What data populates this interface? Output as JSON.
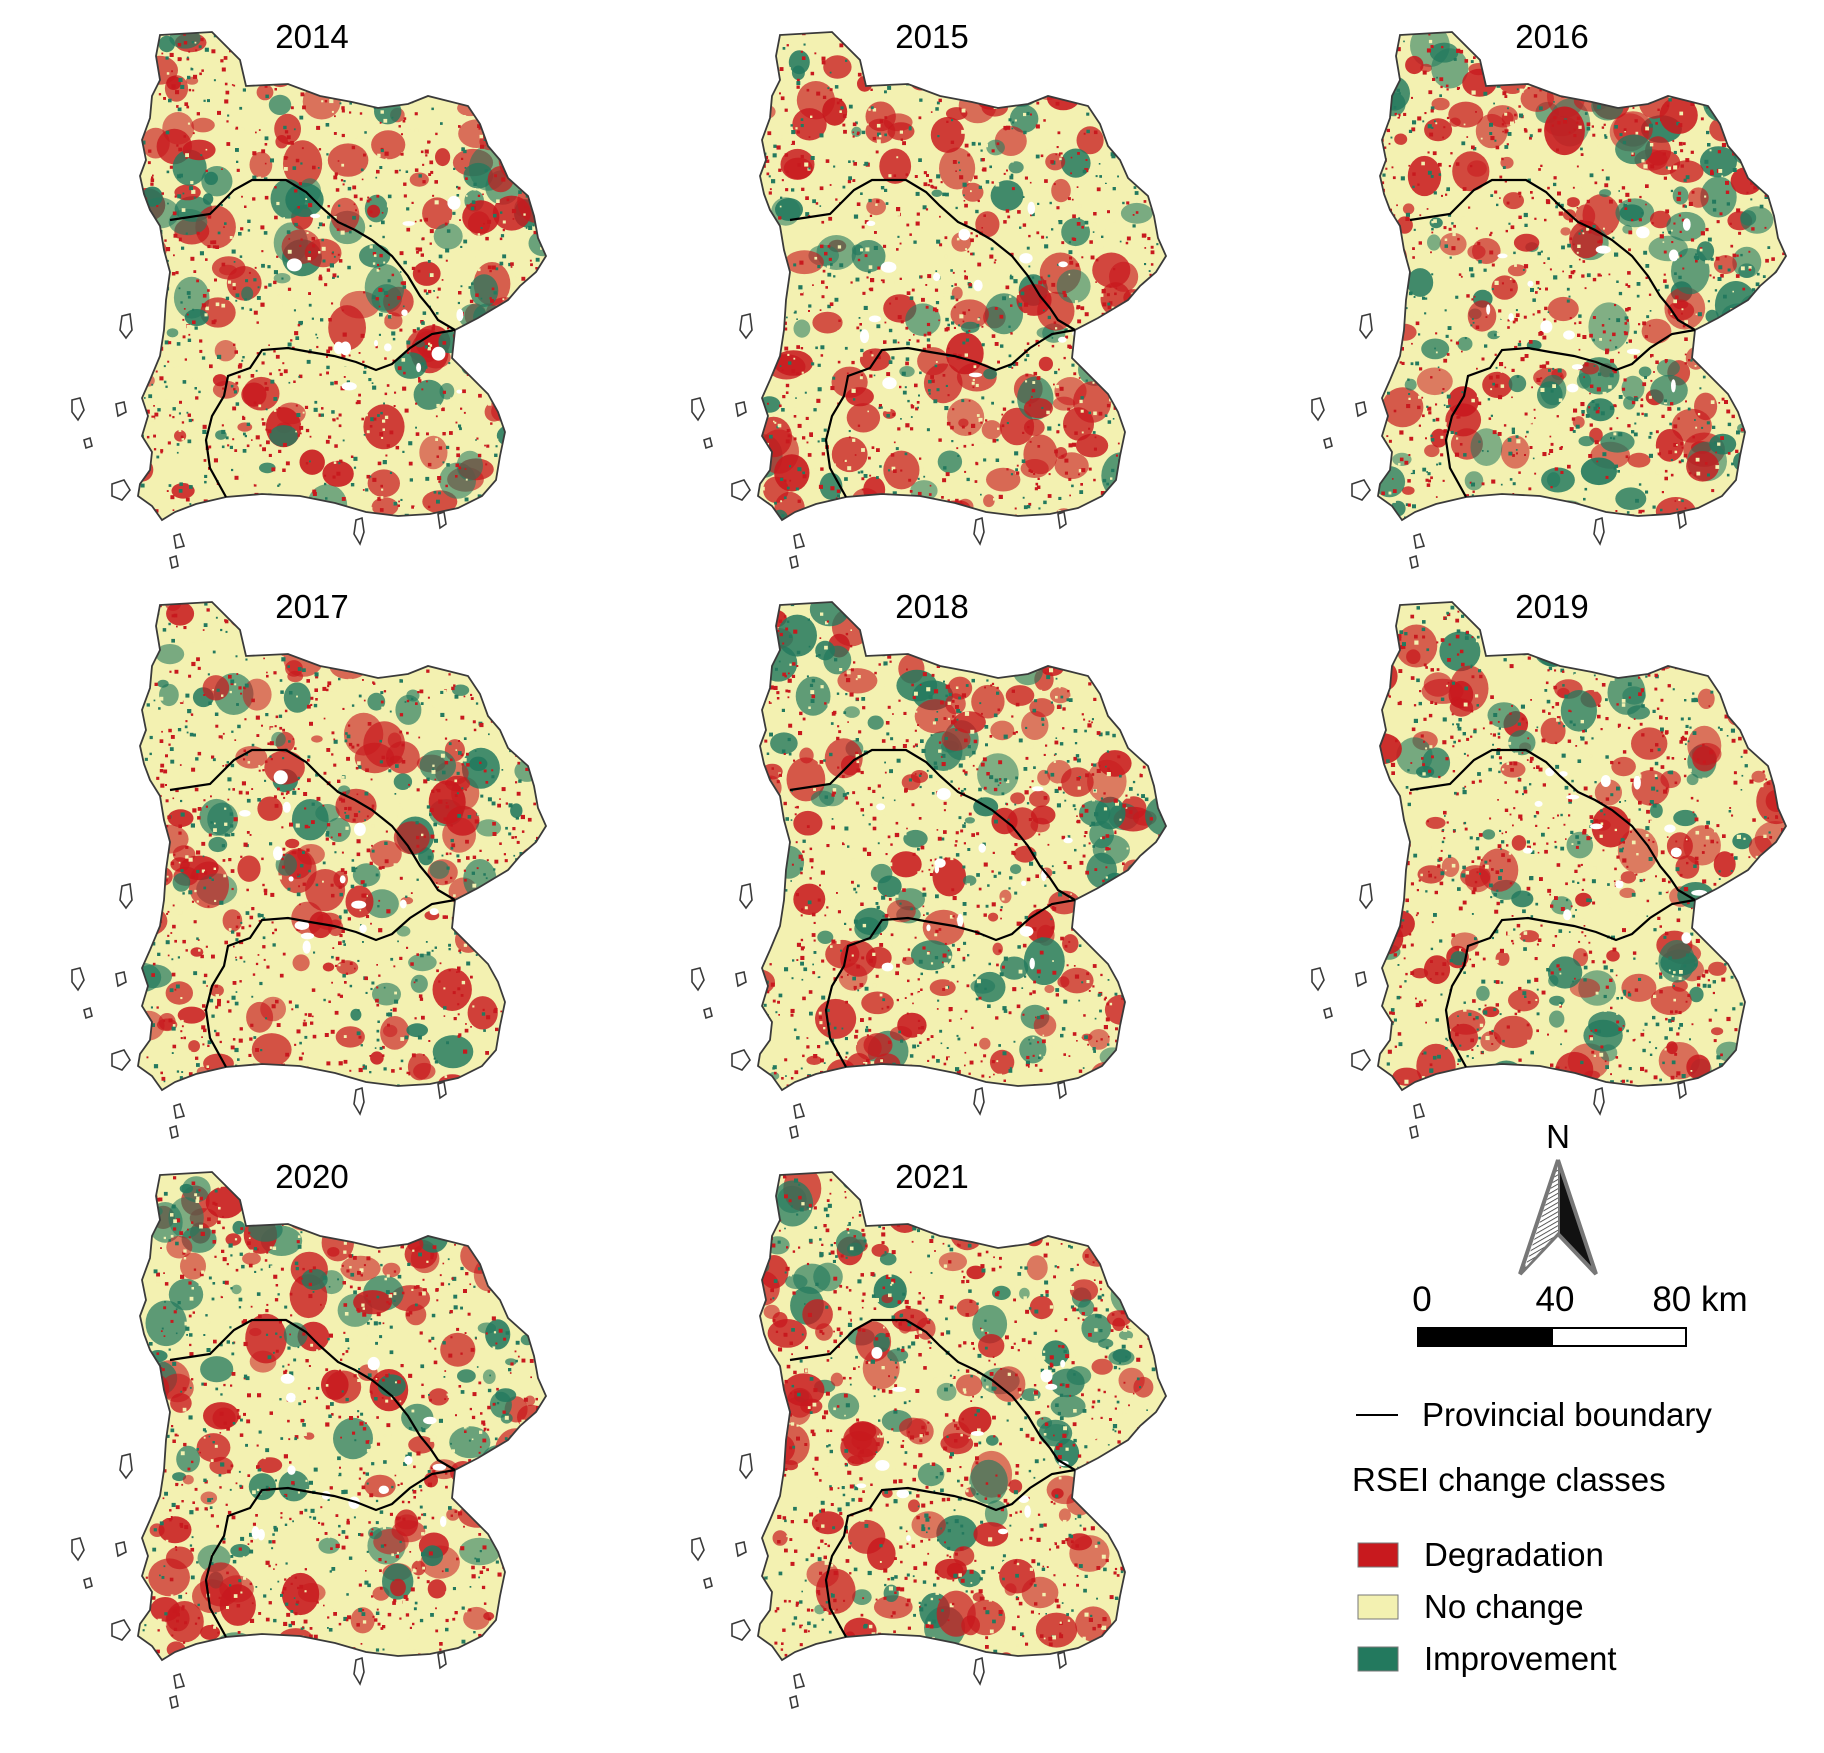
{
  "panels": [
    {
      "year": "2014",
      "pattern": {
        "degradation": 0.36,
        "improvement": 0.24,
        "north_degradation": 0.55,
        "south_improvement": 0.05,
        "east_improvement": 0.55,
        "west_improvement": 0.35
      }
    },
    {
      "year": "2015",
      "pattern": {
        "degradation": 0.38,
        "improvement": 0.18,
        "north_degradation": 0.62,
        "south_improvement": 0.08,
        "east_improvement": 0.3,
        "west_improvement": 0.3
      }
    },
    {
      "year": "2016",
      "pattern": {
        "degradation": 0.33,
        "improvement": 0.3,
        "north_degradation": 0.65,
        "south_improvement": 0.38,
        "east_improvement": 0.45,
        "west_improvement": 0.2
      }
    },
    {
      "year": "2017",
      "pattern": {
        "degradation": 0.38,
        "improvement": 0.2,
        "north_degradation": 0.45,
        "south_improvement": 0.1,
        "east_improvement": 0.3,
        "west_improvement": 0.3
      }
    },
    {
      "year": "2018",
      "pattern": {
        "degradation": 0.4,
        "improvement": 0.22,
        "north_degradation": 0.42,
        "south_improvement": 0.1,
        "east_improvement": 0.5,
        "west_improvement": 0.3
      }
    },
    {
      "year": "2019",
      "pattern": {
        "degradation": 0.4,
        "improvement": 0.24,
        "north_degradation": 0.42,
        "south_improvement": 0.12,
        "east_improvement": 0.6,
        "west_improvement": 0.3
      }
    },
    {
      "year": "2020",
      "pattern": {
        "degradation": 0.4,
        "improvement": 0.24,
        "north_degradation": 0.45,
        "south_improvement": 0.08,
        "east_improvement": 0.55,
        "west_improvement": 0.4
      }
    },
    {
      "year": "2021",
      "pattern": {
        "degradation": 0.4,
        "improvement": 0.24,
        "north_degradation": 0.42,
        "south_improvement": 0.08,
        "east_improvement": 0.6,
        "west_improvement": 0.4
      }
    }
  ],
  "north_arrow": {
    "label": "N"
  },
  "scale_bar": {
    "ticks": [
      "0",
      "40",
      "80 km"
    ]
  },
  "legend": {
    "boundary_label": "Provincial boundary",
    "title": "RSEI change classes",
    "classes": [
      {
        "label": "Degradation",
        "color": "#c8191e"
      },
      {
        "label": "No change",
        "color": "#f3f1b1"
      },
      {
        "label": "Improvement",
        "color": "#23795e"
      }
    ]
  }
}
